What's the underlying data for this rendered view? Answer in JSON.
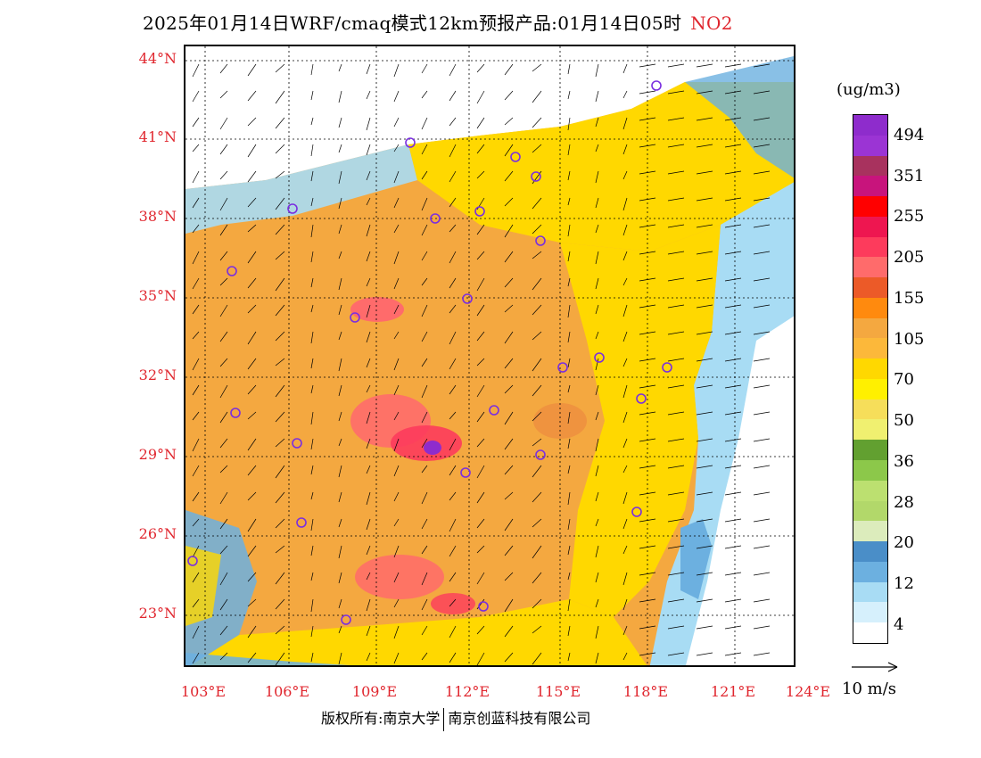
{
  "title": {
    "text": "2025年01月14日WRF/cmaq模式12km预报产品:01月14日05时",
    "species": "NO2"
  },
  "axes": {
    "lat_labels": [
      "44°N",
      "41°N",
      "38°N",
      "35°N",
      "32°N",
      "29°N",
      "26°N",
      "23°N"
    ],
    "lon_labels": [
      "103°E",
      "106°E",
      "109°E",
      "112°E",
      "115°E",
      "118°E",
      "121°E",
      "124°E"
    ]
  },
  "legend": {
    "unit": "(ug/m3)",
    "levels": [
      "494",
      "351",
      "255",
      "205",
      "155",
      "105",
      "70",
      "50",
      "36",
      "28",
      "20",
      "12",
      "4"
    ],
    "colors": [
      "#8e2ccc",
      "#9b34d4",
      "#a8325e",
      "#c8147c",
      "#ff0000",
      "#ee1650",
      "#fd3b5c",
      "#ff6b6b",
      "#ec5a28",
      "#ff8a0e",
      "#f4a840",
      "#fcb83a",
      "#ffd800",
      "#fff000",
      "#f6de5a",
      "#f0f070",
      "#62a030",
      "#8cc84a",
      "#bce070",
      "#b2d86a",
      "#dcecbc",
      "#4a8ec8",
      "#6cb0e0",
      "#a8dcf4",
      "#d6f0fc",
      "#ffffff"
    ]
  },
  "wind": {
    "reference_label": "10 m/s"
  },
  "footer": {
    "left": "版权所有:南京大学",
    "right": "南京创蓝科技有限公司"
  }
}
